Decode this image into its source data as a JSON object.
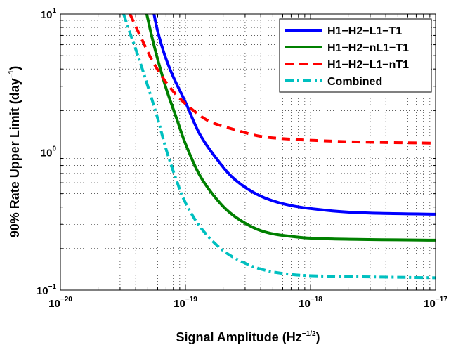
{
  "chart_data": {
    "type": "line",
    "xlabel": "Signal Amplitude (Hz",
    "xlabel_sup": "−1/2",
    "xlabel_tail": ")",
    "ylabel": "90% Rate Upper Limit (day",
    "ylabel_sup": "−1",
    "ylabel_tail": ")",
    "x_scale": "log",
    "y_scale": "log",
    "xlim": [
      1e-20,
      1e-17
    ],
    "ylim": [
      0.1,
      10
    ],
    "grid": true,
    "legend_position": "top-right",
    "x_ticks": [
      {
        "value": 1e-20,
        "base": "10",
        "exp": "−20"
      },
      {
        "value": 1e-19,
        "base": "10",
        "exp": "−19"
      },
      {
        "value": 1e-18,
        "base": "10",
        "exp": "−18"
      },
      {
        "value": 1e-17,
        "base": "10",
        "exp": "−17"
      }
    ],
    "y_ticks": [
      {
        "value": 0.1,
        "base": "10",
        "exp": "−1"
      },
      {
        "value": 1,
        "base": "10",
        "exp": "0"
      },
      {
        "value": 10,
        "base": "10",
        "exp": "1"
      }
    ],
    "series": [
      {
        "name": "H1−H2−L1−T1",
        "color": "#0000ff",
        "style": "solid",
        "points": [
          [
            5.6e-20,
            10
          ],
          [
            6e-20,
            7.5
          ],
          [
            6.8e-20,
            5.1
          ],
          [
            8e-20,
            3.5
          ],
          [
            1e-19,
            2.3
          ],
          [
            1.3e-19,
            1.35
          ],
          [
            1.8e-19,
            0.88
          ],
          [
            2.5e-19,
            0.63
          ],
          [
            4e-19,
            0.48
          ],
          [
            7e-19,
            0.41
          ],
          [
            1.5e-18,
            0.375
          ],
          [
            3e-18,
            0.362
          ],
          [
            1e-17,
            0.355
          ]
        ]
      },
      {
        "name": "H1−H2−nL1−T1",
        "color": "#008000",
        "style": "solid",
        "points": [
          [
            4.9e-20,
            10
          ],
          [
            5.4e-20,
            6.8
          ],
          [
            6e-20,
            4.7
          ],
          [
            7e-20,
            2.9
          ],
          [
            8.5e-20,
            1.75
          ],
          [
            1e-19,
            1.15
          ],
          [
            1.3e-19,
            0.68
          ],
          [
            1.8e-19,
            0.45
          ],
          [
            2.5e-19,
            0.34
          ],
          [
            4e-19,
            0.27
          ],
          [
            7e-19,
            0.245
          ],
          [
            1.5e-18,
            0.235
          ],
          [
            1e-17,
            0.23
          ]
        ]
      },
      {
        "name": "H1−H2−L1−nT1",
        "color": "#ff0000",
        "style": "dashed",
        "points": [
          [
            3.6e-20,
            10
          ],
          [
            4.5e-20,
            6.5
          ],
          [
            5.5e-20,
            4.5
          ],
          [
            7e-20,
            3.2
          ],
          [
            9e-20,
            2.45
          ],
          [
            1.2e-19,
            1.95
          ],
          [
            1.6e-19,
            1.65
          ],
          [
            2.5e-19,
            1.45
          ],
          [
            4e-19,
            1.3
          ],
          [
            7e-19,
            1.24
          ],
          [
            1.5e-18,
            1.2
          ],
          [
            3e-18,
            1.18
          ],
          [
            1e-17,
            1.16
          ]
        ]
      },
      {
        "name": "Combined",
        "color": "#00c0c0",
        "style": "dashdot",
        "points": [
          [
            3.2e-20,
            10
          ],
          [
            3.6e-20,
            7.3
          ],
          [
            4.2e-20,
            4.9
          ],
          [
            5e-20,
            3.0
          ],
          [
            6e-20,
            1.75
          ],
          [
            7e-20,
            1.05
          ],
          [
            8.5e-20,
            0.62
          ],
          [
            1e-19,
            0.43
          ],
          [
            1.3e-19,
            0.29
          ],
          [
            1.8e-19,
            0.21
          ],
          [
            2.5e-19,
            0.17
          ],
          [
            4e-19,
            0.142
          ],
          [
            7e-19,
            0.13
          ],
          [
            1.5e-18,
            0.126
          ],
          [
            1e-17,
            0.123
          ]
        ]
      }
    ]
  }
}
